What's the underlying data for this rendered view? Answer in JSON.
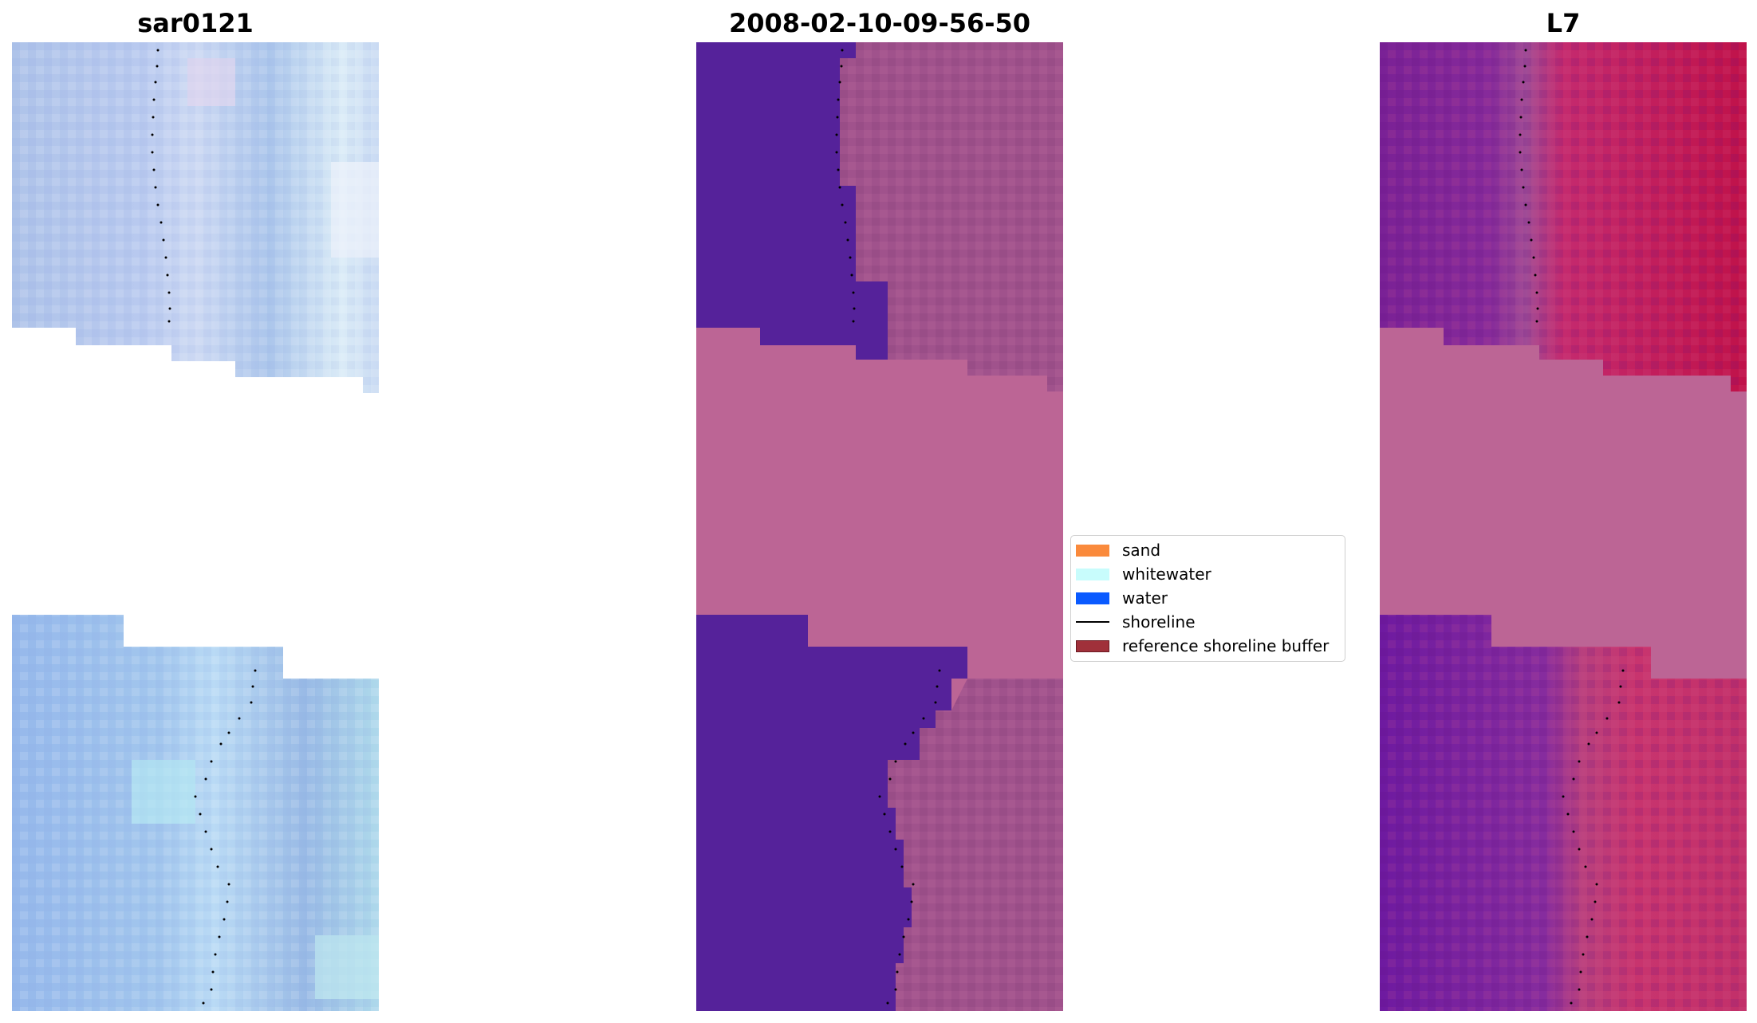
{
  "panels": [
    {
      "title": "sar0121"
    },
    {
      "title": "2008-02-10-09-56-50"
    },
    {
      "title": "L7"
    }
  ],
  "legend": {
    "items": [
      {
        "label": "sand",
        "kind": "patch",
        "color": "#fa8a3c"
      },
      {
        "label": "whitewater",
        "kind": "patch",
        "color": "#c8fcfc"
      },
      {
        "label": "water",
        "kind": "patch",
        "color": "#0a5aff"
      },
      {
        "label": "shoreline",
        "kind": "line",
        "color": "#000000"
      },
      {
        "label": "reference shoreline buffer",
        "kind": "patch",
        "color": "#a0303a"
      }
    ]
  },
  "colors": {
    "sar_base": "#a9c4ea",
    "classified_water_class": "#55229a",
    "classified_land_class": "#a0528c",
    "nodata_fill": "#bc6595",
    "l7_left": "#7a2196",
    "l7_right": "#c0124a"
  }
}
